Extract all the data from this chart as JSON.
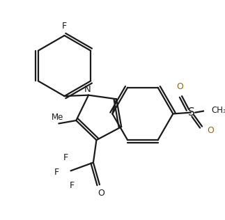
{
  "bg": "#ffffff",
  "lc": "#1a1a1a",
  "lw": 1.6,
  "fs": 9,
  "figsize": [
    3.23,
    3.16
  ],
  "dpi": 100,
  "xlim": [
    0,
    323
  ],
  "ylim": [
    0,
    316
  ]
}
